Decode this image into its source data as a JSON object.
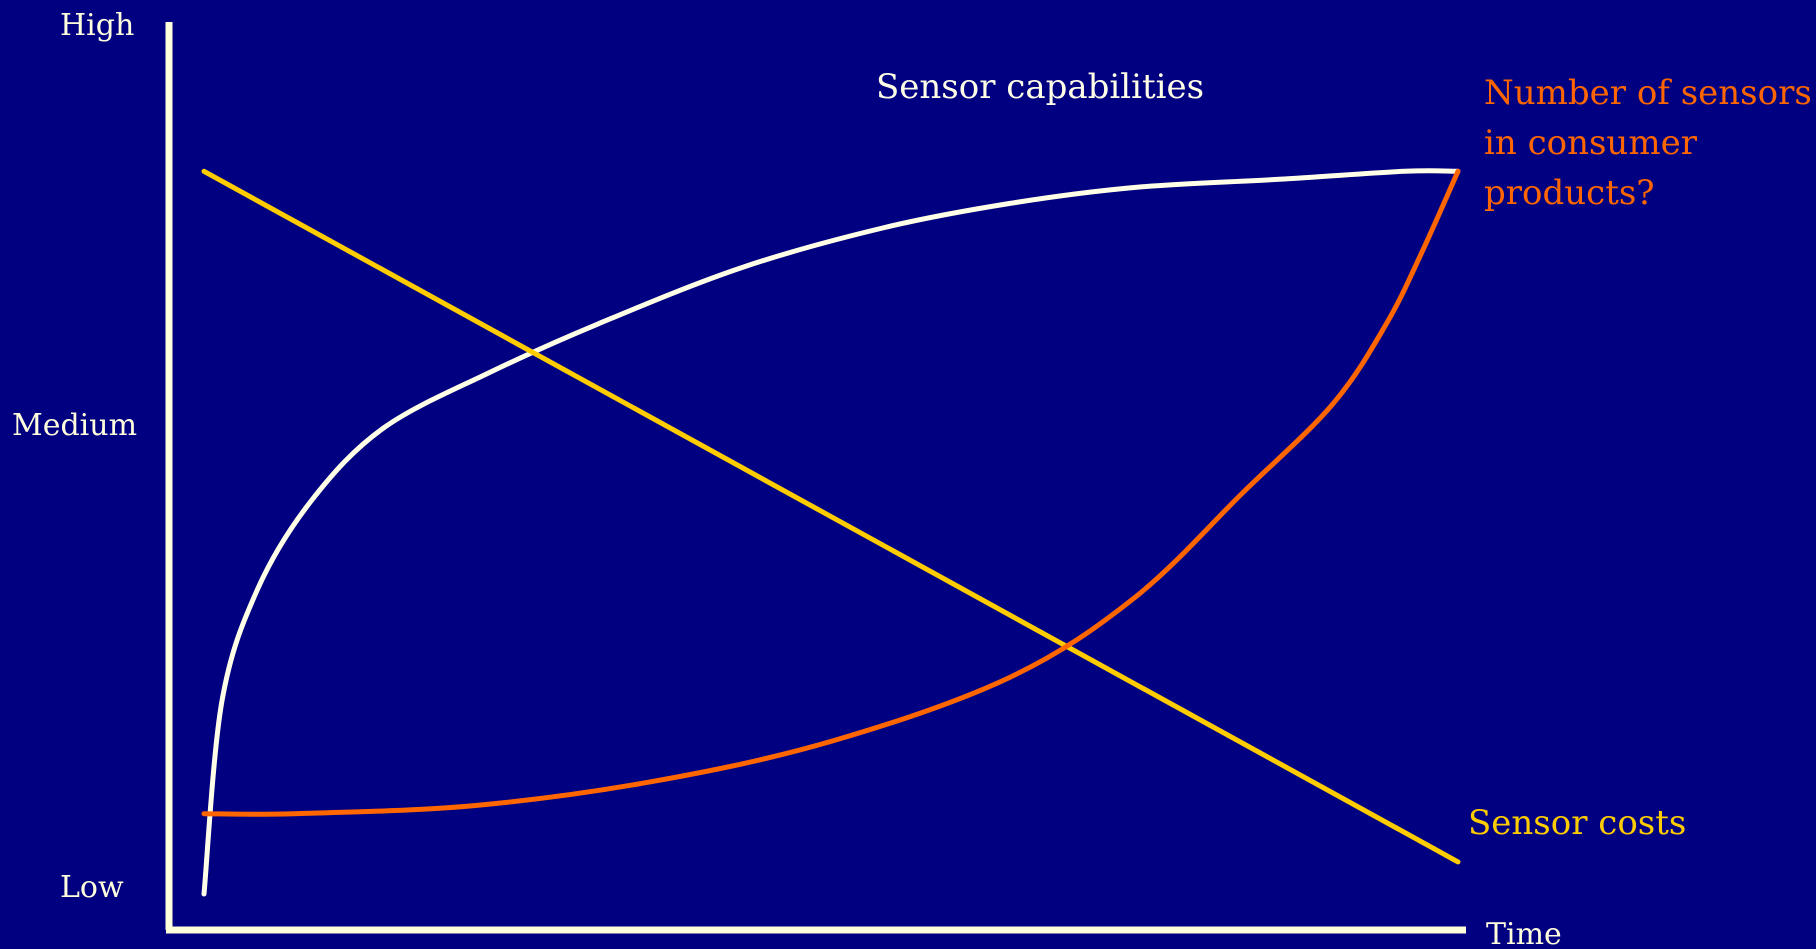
{
  "colors": {
    "background": "#000080",
    "axis": "#FFFFDD",
    "capabilities": "#FFFFE8",
    "costs": "#FFCC00",
    "sensors": "#FF6600"
  },
  "chart_data": {
    "type": "line",
    "title": "",
    "xlabel": "Time",
    "ylabel": "",
    "ylim": [
      0,
      100
    ],
    "grid": false,
    "y_tick_labels": [
      {
        "label": "High",
        "value": 100
      },
      {
        "label": "Medium",
        "value": 53
      },
      {
        "label": "Low",
        "value": 0
      }
    ],
    "series": [
      {
        "name": "Sensor capabilities",
        "color": "#FFFFE8",
        "points": [
          [
            0,
            0
          ],
          [
            1,
            24
          ],
          [
            3,
            38
          ],
          [
            6,
            49
          ],
          [
            10,
            58
          ],
          [
            16,
            65
          ],
          [
            22,
            71
          ],
          [
            30,
            78
          ],
          [
            38,
            83
          ],
          [
            45,
            86
          ],
          [
            52,
            88
          ],
          [
            60,
            89
          ],
          [
            67,
            90
          ],
          [
            70,
            90
          ]
        ]
      },
      {
        "name": "Sensor costs",
        "color": "#FFCC00",
        "points": [
          [
            0,
            90
          ],
          [
            70,
            4
          ]
        ]
      },
      {
        "name": "Number of sensors in consumer products?",
        "color": "#FF6600",
        "points": [
          [
            0,
            10
          ],
          [
            5,
            10
          ],
          [
            15,
            11
          ],
          [
            25,
            14
          ],
          [
            35,
            19
          ],
          [
            45,
            27
          ],
          [
            52,
            37
          ],
          [
            58,
            50
          ],
          [
            63,
            61
          ],
          [
            66,
            71
          ],
          [
            68,
            80
          ],
          [
            70,
            90
          ]
        ]
      }
    ]
  }
}
